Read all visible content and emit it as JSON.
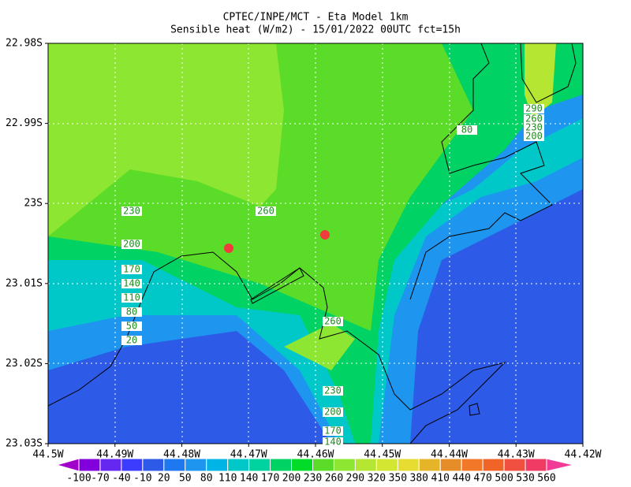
{
  "title": {
    "line1": "CPTEC/INPE/MCT -  Eta Model 1km",
    "line2": "Sensible heat (W/m2) - 15/01/2022 00UTC fct=15h"
  },
  "x_axis": {
    "ticks": [
      "44.5W",
      "44.49W",
      "44.48W",
      "44.47W",
      "44.46W",
      "44.45W",
      "44.44W",
      "44.43W",
      "44.42W"
    ]
  },
  "y_axis": {
    "ticks": [
      "22.98S",
      "22.99S",
      "23S",
      "23.01S",
      "23.02S",
      "23.03S"
    ]
  },
  "colorbar": {
    "labels": [
      -100,
      -70,
      -40,
      -10,
      20,
      50,
      80,
      110,
      140,
      170,
      200,
      230,
      260,
      290,
      320,
      350,
      380,
      410,
      440,
      470,
      500,
      530,
      560
    ],
    "colors": [
      "#a000c8",
      "#8200dc",
      "#6428f0",
      "#3c3cff",
      "#2d5ae6",
      "#1e78f0",
      "#1e96f0",
      "#00b4e6",
      "#00c8c8",
      "#00d2a0",
      "#00d264",
      "#00dc28",
      "#5adc28",
      "#8ce632",
      "#b4e632",
      "#d2e632",
      "#e6dc32",
      "#e6b428",
      "#e68c28",
      "#f07828",
      "#f06428",
      "#f05040",
      "#f03c64",
      "#f03c96"
    ]
  },
  "contour_labels": [
    230,
    200,
    170,
    140,
    110,
    80,
    50,
    20,
    260,
    80,
    290,
    260,
    230,
    200,
    260,
    230,
    200,
    170,
    140
  ]
}
